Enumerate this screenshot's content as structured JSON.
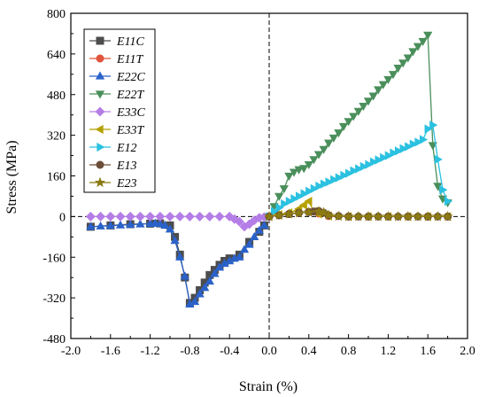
{
  "chart_data": {
    "type": "line",
    "title": "",
    "xlabel": "Strain (%)",
    "ylabel": "Stress (MPa)",
    "xlim": [
      -2.0,
      2.0
    ],
    "ylim": [
      -480,
      800
    ],
    "xticks": [
      -2.0,
      -1.6,
      -1.2,
      -0.8,
      -0.4,
      0.0,
      0.4,
      0.8,
      1.2,
      1.6,
      2.0
    ],
    "xtick_labels": [
      "-2.0",
      "-1.6",
      "-1.2",
      "-0.8",
      "-0.4",
      "0.0",
      "0.4",
      "0.8",
      "1.2",
      "1.6",
      "2.0"
    ],
    "yticks": [
      -480,
      -320,
      -160,
      0,
      160,
      320,
      480,
      640,
      800
    ],
    "ytick_labels": [
      "-480",
      "-320",
      "-160",
      "0",
      "160",
      "320",
      "480",
      "640",
      "800"
    ],
    "grid": false,
    "legend_position": "top-left",
    "series": [
      {
        "name": "E11C",
        "color": "#4d4d4d",
        "marker": "square",
        "x": [
          -1.8,
          -1.6,
          -1.4,
          -1.2,
          -1.1,
          -1.0,
          -0.95,
          -0.9,
          -0.85,
          -0.8,
          -0.75,
          -0.7,
          -0.65,
          -0.6,
          -0.55,
          -0.5,
          -0.45,
          -0.4,
          -0.3,
          -0.2,
          -0.1,
          -0.05
        ],
        "y": [
          -40,
          -35,
          -30,
          -28,
          -27,
          -35,
          -80,
          -150,
          -240,
          -340,
          -320,
          -290,
          -260,
          -230,
          -210,
          -190,
          -175,
          -165,
          -150,
          -100,
          -60,
          -35
        ]
      },
      {
        "name": "E11T",
        "color": "#e0533c",
        "marker": "circle",
        "x": [
          0.0,
          0.1,
          0.2,
          0.3,
          0.4,
          0.5,
          0.6,
          0.8,
          1.0,
          1.2,
          1.4,
          1.6,
          1.8
        ],
        "y": [
          0,
          5,
          10,
          15,
          18,
          12,
          2,
          0,
          0,
          0,
          0,
          0,
          0
        ]
      },
      {
        "name": "E22C",
        "color": "#2a62c9",
        "marker": "triangle-up",
        "x": [
          -1.8,
          -1.7,
          -1.6,
          -1.5,
          -1.4,
          -1.3,
          -1.2,
          -1.15,
          -1.1,
          -1.05,
          -1.0,
          -0.95,
          -0.9,
          -0.85,
          -0.8,
          -0.75,
          -0.7,
          -0.65,
          -0.6,
          -0.55,
          -0.5,
          -0.45,
          -0.4,
          -0.35,
          -0.3,
          -0.25,
          -0.2,
          -0.15,
          -0.1,
          -0.05
        ],
        "y": [
          -40,
          -38,
          -36,
          -34,
          -32,
          -30,
          -28,
          -27,
          -28,
          -35,
          -50,
          -95,
          -160,
          -235,
          -345,
          -335,
          -305,
          -280,
          -255,
          -225,
          -200,
          -185,
          -175,
          -165,
          -160,
          -130,
          -110,
          -80,
          -55,
          -35
        ]
      },
      {
        "name": "E22T",
        "color": "#4a8f5b",
        "marker": "triangle-down",
        "x": [
          0.0,
          0.05,
          0.1,
          0.15,
          0.2,
          0.25,
          0.3,
          0.35,
          0.4,
          0.45,
          0.5,
          0.55,
          0.6,
          0.65,
          0.7,
          0.75,
          0.8,
          0.85,
          0.9,
          0.95,
          1.0,
          1.05,
          1.1,
          1.15,
          1.2,
          1.25,
          1.3,
          1.35,
          1.4,
          1.45,
          1.5,
          1.55,
          1.6,
          1.65,
          1.7,
          1.75,
          1.8
        ],
        "y": [
          0,
          40,
          80,
          110,
          160,
          175,
          185,
          190,
          205,
          225,
          245,
          265,
          290,
          310,
          330,
          355,
          375,
          395,
          415,
          435,
          455,
          475,
          500,
          520,
          540,
          560,
          585,
          605,
          625,
          650,
          670,
          690,
          715,
          280,
          120,
          70,
          55
        ]
      },
      {
        "name": "E33C",
        "color": "#b57ee6",
        "marker": "diamond",
        "x": [
          -1.8,
          -1.7,
          -1.6,
          -1.5,
          -1.4,
          -1.3,
          -1.2,
          -1.1,
          -1.0,
          -0.9,
          -0.8,
          -0.7,
          -0.6,
          -0.5,
          -0.4,
          -0.35,
          -0.3,
          -0.25,
          -0.2,
          -0.15,
          -0.1,
          -0.05,
          0.0
        ],
        "y": [
          0,
          0,
          0,
          0,
          0,
          0,
          0,
          0,
          0,
          0,
          0,
          0,
          0,
          0,
          0,
          -10,
          -20,
          -40,
          -30,
          -15,
          -5,
          -2,
          0
        ]
      },
      {
        "name": "E33T",
        "color": "#b5a100",
        "marker": "triangle-left",
        "x": [
          0.0,
          0.1,
          0.2,
          0.3,
          0.35,
          0.4,
          0.45,
          0.5,
          0.6,
          0.8,
          1.0,
          1.2,
          1.4,
          1.6,
          1.8
        ],
        "y": [
          0,
          8,
          15,
          30,
          45,
          60,
          20,
          10,
          2,
          0,
          0,
          0,
          0,
          0,
          0
        ]
      },
      {
        "name": "E12",
        "color": "#2bc1e0",
        "marker": "triangle-right",
        "x": [
          0.0,
          0.05,
          0.1,
          0.15,
          0.2,
          0.25,
          0.3,
          0.35,
          0.4,
          0.45,
          0.5,
          0.55,
          0.6,
          0.65,
          0.7,
          0.75,
          0.8,
          0.85,
          0.9,
          0.95,
          1.0,
          1.05,
          1.1,
          1.15,
          1.2,
          1.25,
          1.3,
          1.35,
          1.4,
          1.45,
          1.5,
          1.55,
          1.6,
          1.65,
          1.7,
          1.75,
          1.8
        ],
        "y": [
          0,
          20,
          35,
          50,
          60,
          70,
          80,
          90,
          100,
          110,
          120,
          128,
          136,
          145,
          153,
          162,
          170,
          180,
          188,
          197,
          205,
          215,
          223,
          232,
          240,
          250,
          258,
          267,
          275,
          285,
          293,
          303,
          345,
          360,
          225,
          105,
          60
        ]
      },
      {
        "name": "E13",
        "color": "#6b4d38",
        "marker": "circle",
        "x": [
          0.0,
          0.1,
          0.2,
          0.3,
          0.4,
          0.45,
          0.5,
          0.55,
          0.6,
          0.7,
          0.8,
          0.9,
          1.0,
          1.1,
          1.2,
          1.3,
          1.4,
          1.5,
          1.6,
          1.7,
          1.8
        ],
        "y": [
          0,
          5,
          10,
          15,
          18,
          20,
          22,
          15,
          5,
          2,
          0,
          0,
          0,
          0,
          0,
          0,
          0,
          0,
          0,
          0,
          0
        ]
      },
      {
        "name": "E23",
        "color": "#8a7a12",
        "marker": "star",
        "x": [
          0.0,
          0.1,
          0.2,
          0.3,
          0.4,
          0.5,
          0.55,
          0.6,
          0.7,
          0.8,
          0.9,
          1.0,
          1.1,
          1.2,
          1.3,
          1.4,
          1.5,
          1.6,
          1.7,
          1.8
        ],
        "y": [
          0,
          5,
          10,
          14,
          17,
          20,
          16,
          5,
          1,
          0,
          0,
          0,
          0,
          0,
          0,
          0,
          0,
          0,
          0,
          0
        ]
      }
    ]
  }
}
